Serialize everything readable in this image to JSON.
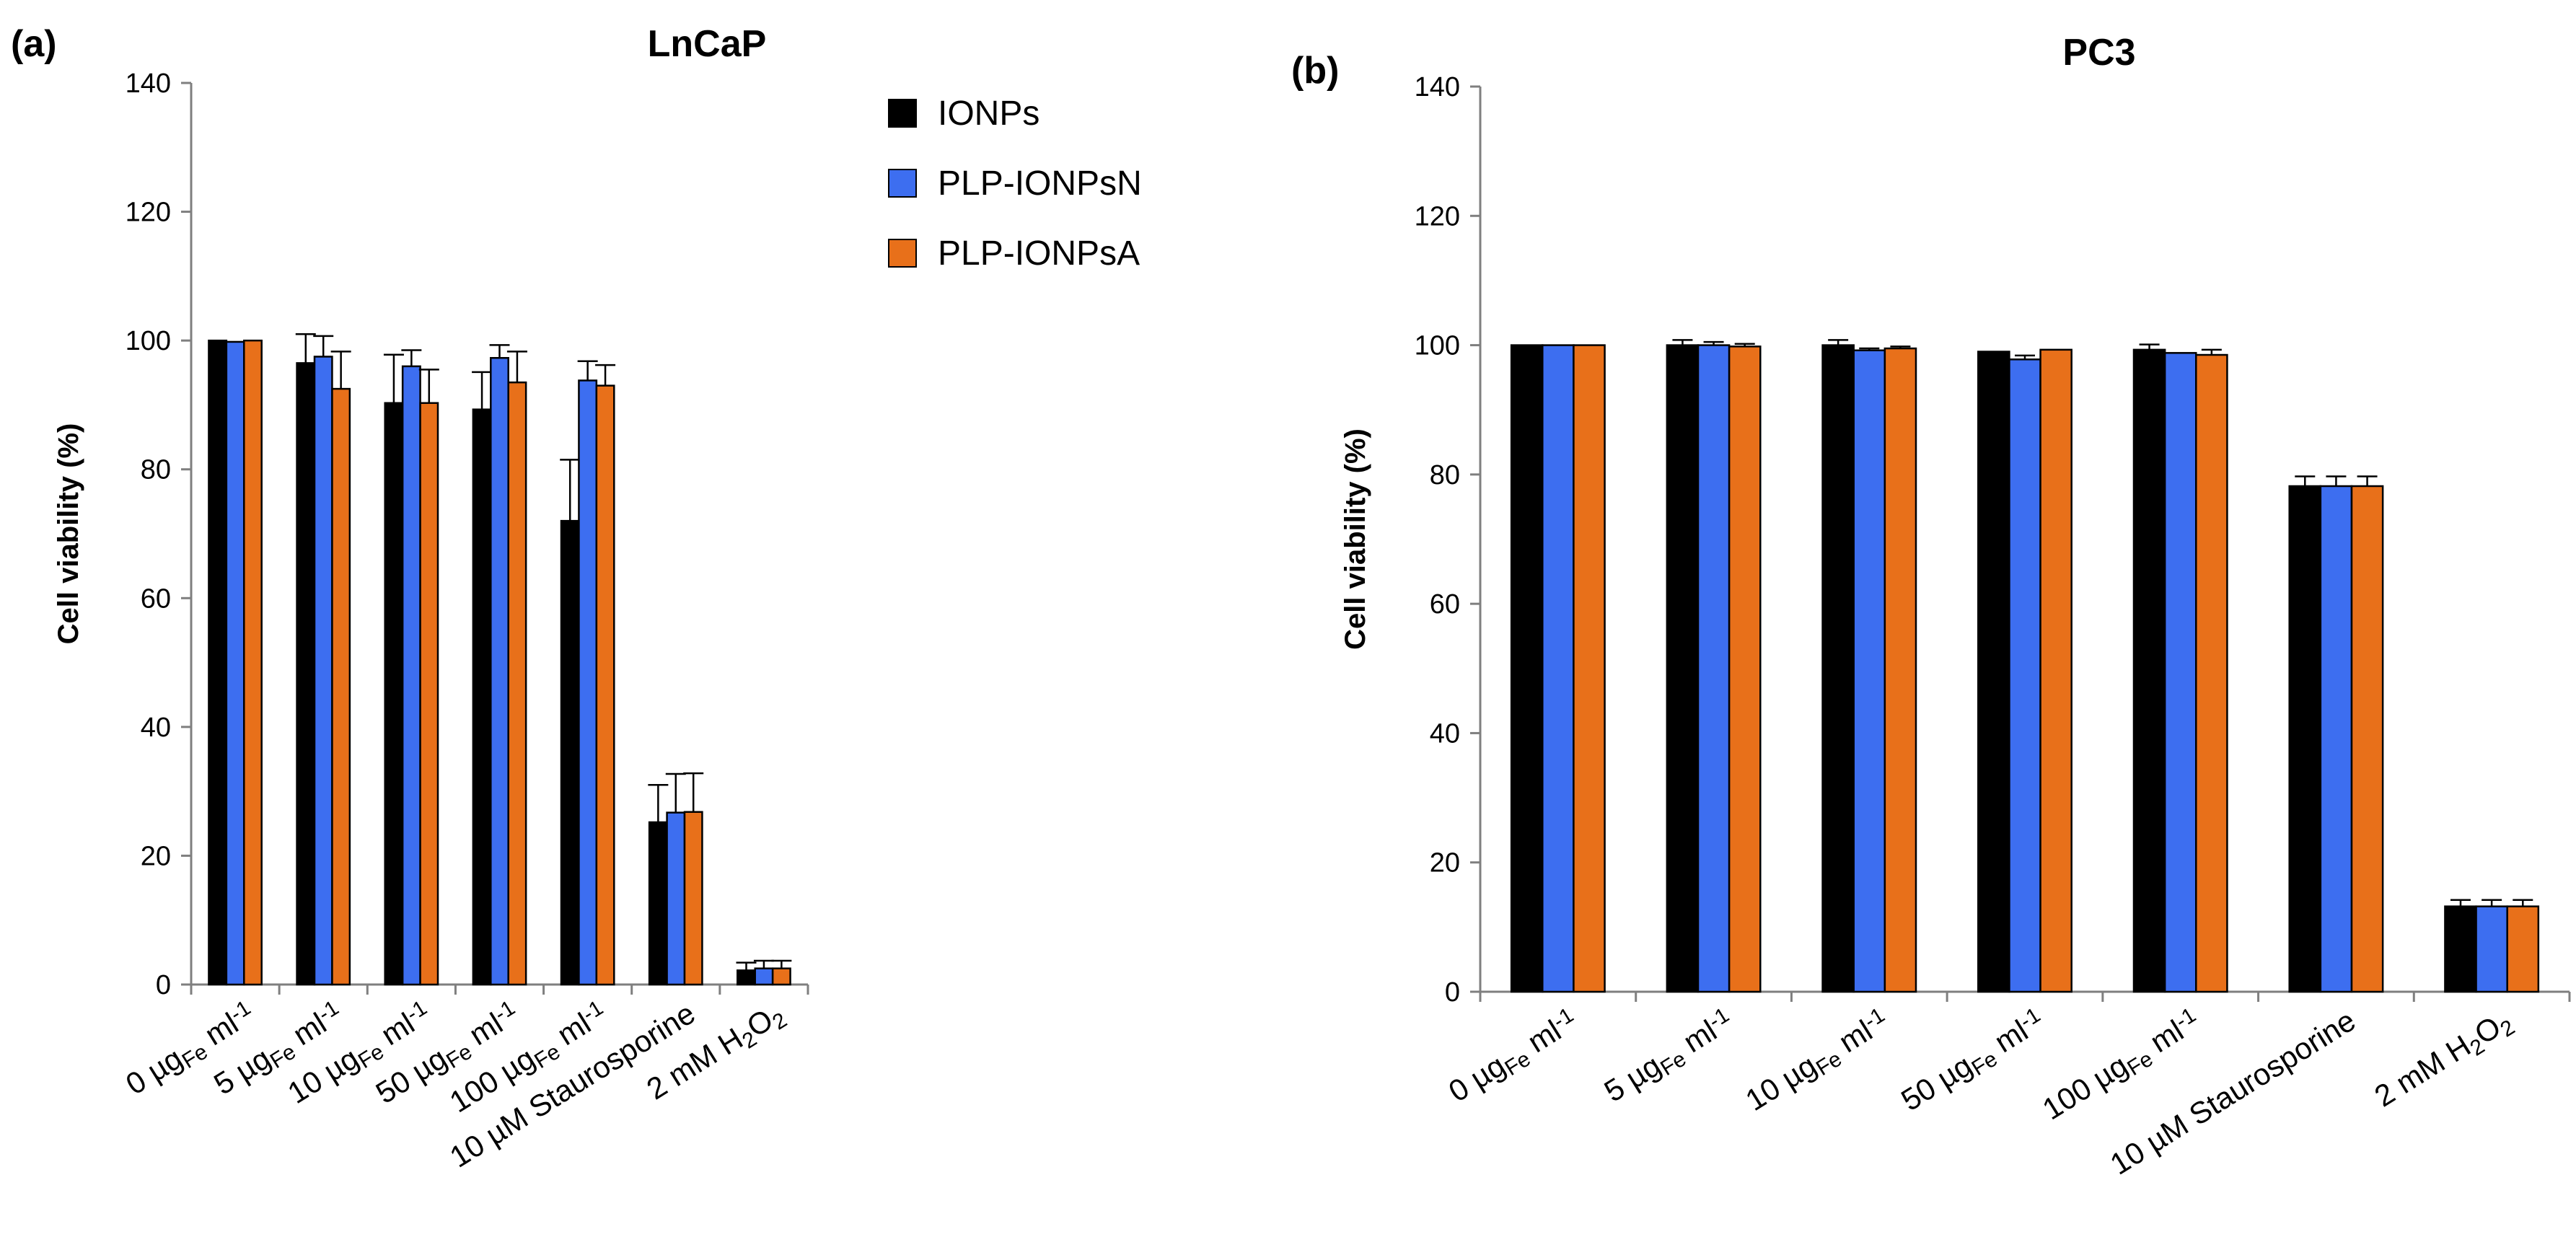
{
  "chart_data": [
    {
      "type": "bar",
      "panel_label": "(a)",
      "title": "LnCaP",
      "ylabel": "Cell viability (%)",
      "xlabel": "",
      "ylim": [
        0,
        140
      ],
      "yticks": [
        0,
        20,
        40,
        60,
        80,
        100,
        120,
        140
      ],
      "categories": [
        {
          "pre": "0 µg",
          "sub": "Fe",
          "post": " ml",
          "sup": "-1"
        },
        {
          "pre": "5 µg",
          "sub": "Fe",
          "post": " ml",
          "sup": "-1"
        },
        {
          "pre": "10 µg",
          "sub": "Fe",
          "post": " ml",
          "sup": "-1"
        },
        {
          "pre": "50 µg",
          "sub": "Fe",
          "post": " ml",
          "sup": "-1"
        },
        {
          "pre": "100 µg",
          "sub": "Fe",
          "post": " ml",
          "sup": "-1"
        },
        {
          "pre": "10 µM Staurosporine",
          "sub": "",
          "post": "",
          "sup": ""
        },
        {
          "pre": "2 mM H",
          "sub": "2",
          "post": "O",
          "sub2": "2"
        }
      ],
      "series": [
        {
          "name": "IONPs",
          "color": "#000000",
          "values": [
            100,
            96.5,
            90.3,
            89.3,
            72.0,
            25.2,
            2.2
          ],
          "errors": [
            0,
            4.5,
            7.5,
            5.8,
            9.5,
            5.8,
            1.2
          ]
        },
        {
          "name": "PLP-IONPsN",
          "color": "#3d6ef0",
          "values": [
            99.8,
            97.5,
            96.0,
            97.3,
            93.8,
            26.7,
            2.5
          ],
          "errors": [
            0,
            3.2,
            2.5,
            2.0,
            3.0,
            6.0,
            1.2
          ]
        },
        {
          "name": "PLP-IONPsA",
          "color": "#e8701a",
          "values": [
            100,
            92.5,
            90.3,
            93.5,
            93.0,
            26.8,
            2.5
          ],
          "errors": [
            0,
            5.8,
            5.2,
            4.8,
            3.2,
            6.0,
            1.2
          ]
        }
      ],
      "legend": "top-right"
    },
    {
      "type": "bar",
      "panel_label": "(b)",
      "title": "PC3",
      "ylabel": "Cell viability (%)",
      "xlabel": "",
      "ylim": [
        0,
        140
      ],
      "yticks": [
        0,
        20,
        40,
        60,
        80,
        100,
        120,
        140
      ],
      "categories": [
        {
          "pre": "0 µg",
          "sub": "Fe",
          "post": " ml",
          "sup": "-1"
        },
        {
          "pre": "5 µg",
          "sub": "Fe",
          "post": " ml",
          "sup": "-1"
        },
        {
          "pre": "10 µg",
          "sub": "Fe",
          "post": " ml",
          "sup": "-1"
        },
        {
          "pre": "50 µg",
          "sub": "Fe",
          "post": " ml",
          "sup": "-1"
        },
        {
          "pre": "100 µg",
          "sub": "Fe",
          "post": " ml",
          "sup": "-1"
        },
        {
          "pre": "10 µM Staurosporine",
          "sub": "",
          "post": "",
          "sup": ""
        },
        {
          "pre": "2 mM H",
          "sub": "2",
          "post": "O",
          "sub2": "2"
        }
      ],
      "series": [
        {
          "name": "IONPs",
          "color": "#000000",
          "values": [
            100,
            100,
            100,
            99.0,
            99.3,
            78.2,
            13.2
          ],
          "errors": [
            0,
            0.8,
            0.8,
            0,
            0.8,
            1.5,
            1.0
          ]
        },
        {
          "name": "PLP-IONPsN",
          "color": "#3d6ef0",
          "values": [
            100,
            100,
            99.2,
            97.8,
            98.8,
            78.2,
            13.2
          ],
          "errors": [
            0,
            0.5,
            0.3,
            0.6,
            0,
            1.5,
            1.0
          ]
        },
        {
          "name": "PLP-IONPsA",
          "color": "#e8701a",
          "values": [
            100,
            99.8,
            99.5,
            99.3,
            98.5,
            78.2,
            13.2
          ],
          "errors": [
            0,
            0.4,
            0.3,
            0,
            0.8,
            1.5,
            1.0
          ]
        }
      ]
    }
  ]
}
